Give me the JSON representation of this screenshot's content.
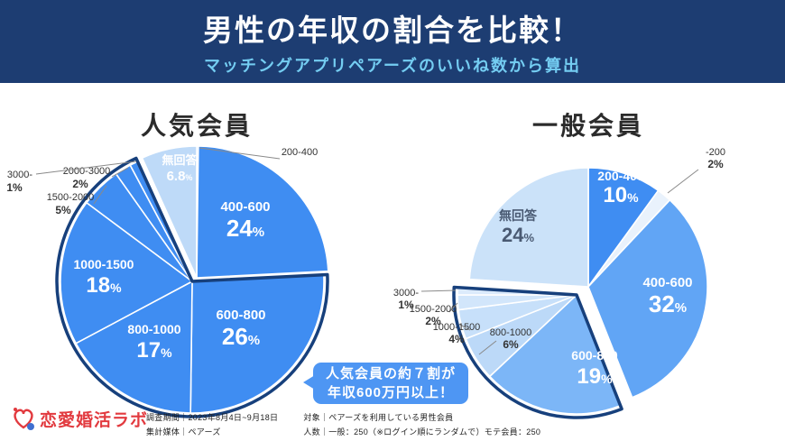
{
  "header": {
    "title": "男性の年収の割合を比較！",
    "subtitle": "マッチングアプリペアーズのいいね数から算出"
  },
  "callout": {
    "line1": "人気会員の約７割が",
    "line2": "年収600万円以上！"
  },
  "logo": {
    "text": "恋愛婚活ラボ"
  },
  "footnotes": [
    "調査期間｜2023年8月4日~9月18日",
    "集計媒体｜ペアーズ",
    "対象｜ペアーズを利用している男性会員",
    "人数｜一般：250（※ログイン順にランダムで）モテ会員：250"
  ],
  "colors": {
    "header_bg": "#1d3d72",
    "subtitle": "#74cdf2",
    "bubble": "#4e96f3",
    "logo_red": "#e23a3f",
    "highlight_navy": "#17407c",
    "accent_blue": "#3f8df2",
    "pale_blue": "#bedaf8"
  },
  "chart_data": [
    {
      "type": "pie",
      "title": "人気会員",
      "unit": "%",
      "slices": [
        {
          "label": "200-400",
          "value": 0.2,
          "display": "",
          "color": "#3f8df2"
        },
        {
          "label": "400-600",
          "value": 24,
          "display": "24%",
          "color": "#3f8df2"
        },
        {
          "label": "600-800",
          "value": 26,
          "display": "26%",
          "color": "#3f8df2"
        },
        {
          "label": "800-1000",
          "value": 17,
          "display": "17%",
          "color": "#3f8df2"
        },
        {
          "label": "1000-1500",
          "value": 18,
          "display": "18%",
          "color": "#3f8df2"
        },
        {
          "label": "1500-2000",
          "value": 5,
          "display": "5%",
          "color": "#3f8df2"
        },
        {
          "label": "2000-3000",
          "value": 2,
          "display": "2%",
          "color": "#3f8df2"
        },
        {
          "label": "3000-",
          "value": 1,
          "display": "1%",
          "color": "#3f8df2"
        },
        {
          "label": "無回答",
          "value": 6.8,
          "display": "6.8%",
          "color": "#bedaf8"
        }
      ],
      "highlight": {
        "from": "600-800",
        "to": "3000-"
      }
    },
    {
      "type": "pie",
      "title": "一般会員",
      "unit": "%",
      "slices": [
        {
          "label": "200-400",
          "value": 10,
          "display": "10%",
          "color": "#3f8df2"
        },
        {
          "label": "-200",
          "value": 2,
          "display": "2%",
          "color": "#e9f2fc"
        },
        {
          "label": "400-600",
          "value": 32,
          "display": "32%",
          "color": "#61a5f5"
        },
        {
          "label": "600-800",
          "value": 19,
          "display": "19%",
          "color": "#7cb6f7"
        },
        {
          "label": "800-1000",
          "value": 6,
          "display": "6%",
          "color": "#bcd9f8"
        },
        {
          "label": "1000-1500",
          "value": 4,
          "display": "4%",
          "color": "#c7e0fa"
        },
        {
          "label": "1500-2000",
          "value": 2,
          "display": "2%",
          "color": "#d2e6fb"
        },
        {
          "label": "3000-",
          "value": 1,
          "display": "1%",
          "color": "#dcebfc"
        },
        {
          "label": "無回答",
          "value": 24,
          "display": "24%",
          "color": "#cbe2f9"
        }
      ],
      "highlight": {
        "from": "600-800",
        "to": "3000-"
      }
    }
  ]
}
